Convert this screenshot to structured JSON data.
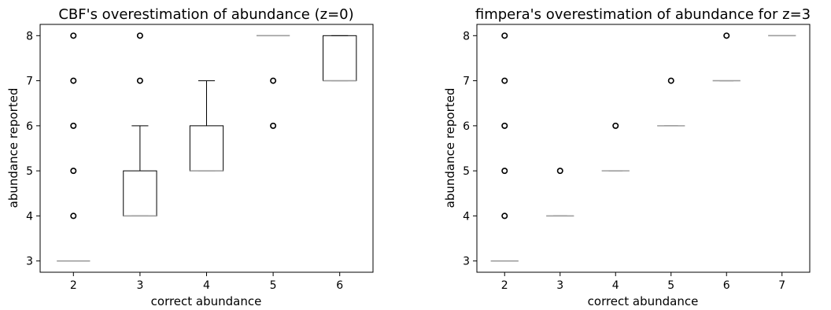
{
  "chart_data": [
    {
      "type": "box",
      "title": "CBF's overestimation of abundance (z=0)",
      "xlabel": "correct abundance",
      "ylabel": "abundance reported",
      "categories": [
        "2",
        "3",
        "4",
        "5",
        "6"
      ],
      "ylim": [
        2.75,
        8.25
      ],
      "yticks": [
        3,
        4,
        5,
        6,
        7,
        8
      ],
      "boxes": [
        {
          "q1": 3,
          "median": 3,
          "q3": 3,
          "whislo": 3,
          "whishi": 3,
          "fliers": [
            4,
            5,
            6,
            7,
            8
          ]
        },
        {
          "q1": 4,
          "median": 4,
          "q3": 5,
          "whislo": 4,
          "whishi": 6,
          "fliers": [
            7,
            8
          ]
        },
        {
          "q1": 5,
          "median": 5,
          "q3": 6,
          "whislo": 5,
          "whishi": 7,
          "fliers": []
        },
        {
          "q1": 8,
          "median": 8,
          "q3": 8,
          "whislo": 8,
          "whishi": 8,
          "fliers": [
            6,
            7
          ]
        },
        {
          "q1": 7,
          "median": 7,
          "q3": 8,
          "whislo": 7,
          "whishi": 8,
          "fliers": []
        }
      ]
    },
    {
      "type": "box",
      "title": "fimpera's overestimation of abundance for z=3",
      "xlabel": "correct abundance",
      "ylabel": "abundance reported",
      "categories": [
        "2",
        "3",
        "4",
        "5",
        "6",
        "7"
      ],
      "ylim": [
        2.75,
        8.25
      ],
      "yticks": [
        3,
        4,
        5,
        6,
        7,
        8
      ],
      "boxes": [
        {
          "q1": 3,
          "median": 3,
          "q3": 3,
          "whislo": 3,
          "whishi": 3,
          "fliers": [
            4,
            5,
            6,
            7,
            8
          ]
        },
        {
          "q1": 4,
          "median": 4,
          "q3": 4,
          "whislo": 4,
          "whishi": 4,
          "fliers": [
            5
          ]
        },
        {
          "q1": 5,
          "median": 5,
          "q3": 5,
          "whislo": 5,
          "whishi": 5,
          "fliers": [
            6
          ]
        },
        {
          "q1": 6,
          "median": 6,
          "q3": 6,
          "whislo": 6,
          "whishi": 6,
          "fliers": [
            7
          ]
        },
        {
          "q1": 7,
          "median": 7,
          "q3": 7,
          "whislo": 7,
          "whishi": 7,
          "fliers": [
            8
          ]
        },
        {
          "q1": 8,
          "median": 8,
          "q3": 8,
          "whislo": 8,
          "whishi": 8,
          "fliers": []
        }
      ]
    }
  ],
  "colors": {
    "box": "#000000",
    "median": "#9e9e9e",
    "flier": "#000000",
    "axes": "#000000"
  }
}
